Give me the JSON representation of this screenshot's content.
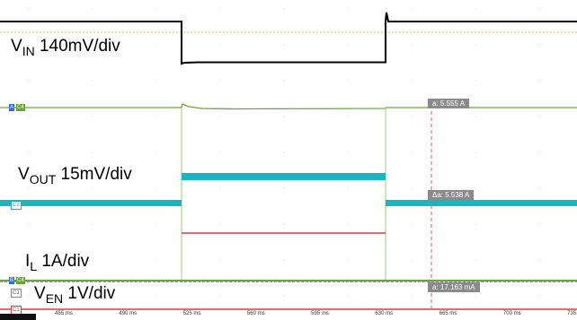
{
  "channels": {
    "vin": {
      "name": "V",
      "sub": "IN",
      "scale": " 140mV/div",
      "color": "#000000"
    },
    "vout": {
      "name": "V",
      "sub": "OUT",
      "scale": " 15mV/div",
      "color": "#1ab5bd"
    },
    "il": {
      "name": "I",
      "sub": "L",
      "scale": " 1A/div",
      "color": "#6aa53a"
    },
    "ven": {
      "name": "V",
      "sub": "EN",
      "scale": " 1V/div",
      "color": "#d83b45"
    }
  },
  "channel_tags": {
    "c4_top": "C4",
    "c2": "C2",
    "c4_bottom": "C4",
    "c1": "C1",
    "c1_icon": "C1"
  },
  "marker_tags": {
    "a": "A",
    "b": "B"
  },
  "measurements": {
    "m1": "a: 5.555 A",
    "m2": "Δa: 5.538 A",
    "m3": "a: 17.163 mA"
  },
  "time_axis": [
    "455 ms",
    "490 ms",
    "525 ms",
    "560 ms",
    "595 ms",
    "630 ms",
    "665 ms",
    "700 ms",
    "735 ms"
  ],
  "colors": {
    "reference_line": "#e8a04a",
    "cursor": "#e85a5a",
    "grid": "#d8d8d8",
    "marker_box": "#8a8a8a"
  }
}
